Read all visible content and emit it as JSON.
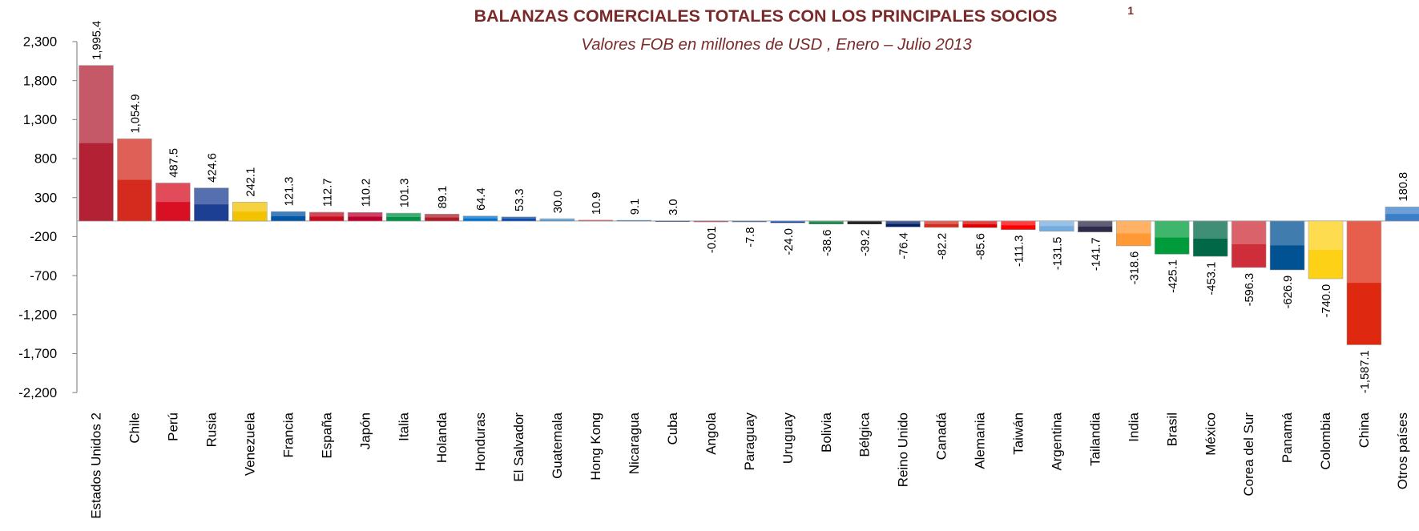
{
  "chart_data": {
    "type": "bar",
    "title": "BALANZAS COMERCIALES TOTALES CON LOS PRINCIPALES SOCIOS",
    "title_note": "1",
    "subtitle": "Valores FOB en millones de USD , Enero – Julio 2013",
    "categories": [
      "Estados Unidos 2",
      "Chile",
      "Perú",
      "Rusia",
      "Venezuela",
      "Francia",
      "España",
      "Japón",
      "Italia",
      "Holanda",
      "Honduras",
      "El Salvador",
      "Guatemala",
      "Hong Kong",
      "Nicaragua",
      "Cuba",
      "Angola",
      "Paraguay",
      "Uruguay",
      "Bolivia",
      "Bélgica",
      "Reino Unido",
      "Canadá",
      "Alemania",
      "Taiwán",
      "Argentina",
      "Tailandia",
      "India",
      "Brasil",
      "México",
      "Corea del Sur",
      "Panamá",
      "Colombia",
      "China",
      "Otros países"
    ],
    "values": [
      1995.4,
      1054.9,
      487.5,
      424.6,
      242.1,
      121.3,
      112.7,
      110.2,
      101.3,
      89.1,
      64.4,
      53.3,
      30.0,
      10.9,
      9.1,
      3.0,
      -0.01,
      -7.8,
      -24.0,
      -38.6,
      -39.2,
      -76.4,
      -82.2,
      -85.6,
      -111.3,
      -131.5,
      -141.7,
      -318.6,
      -425.1,
      -453.1,
      -596.3,
      -626.9,
      -740.0,
      -1587.1,
      180.8
    ],
    "value_labels": [
      "1,995.4",
      "1,054.9",
      "487.5",
      "424.6",
      "242.1",
      "121.3",
      "112.7",
      "110.2",
      "101.3",
      "89.1",
      "64.4",
      "53.3",
      "30.0",
      "10.9",
      "9.1",
      "3.0",
      "-0.01",
      "-7.8",
      "-24.0",
      "-38.6",
      "-39.2",
      "-76.4",
      "-82.2",
      "-85.6",
      "-111.3",
      "-131.5",
      "-141.7",
      "-318.6",
      "-425.1",
      "-453.1",
      "-596.3",
      "-626.9",
      "-740.0",
      "-1,587.1",
      "180.8"
    ],
    "colors": [
      "#b22234",
      "#d52b1e",
      "#d91023",
      "#1c3f94",
      "#f4c300",
      "#0055a4",
      "#c60b1e",
      "#bc002d",
      "#009246",
      "#ae1c28",
      "#0073cf",
      "#0047ab",
      "#4997d0",
      "#de2910",
      "#0067c6",
      "#002a8f",
      "#cc092f",
      "#0038a8",
      "#0038a8",
      "#007934",
      "#000000",
      "#012169",
      "#d52b1e",
      "#dd0000",
      "#fe0000",
      "#74acdf",
      "#2d2a4a",
      "#ff9933",
      "#009c3b",
      "#006847",
      "#cd2e3a",
      "#005293",
      "#fcd116",
      "#de2910",
      "#3a7fc8"
    ],
    "ylim": [
      -2200,
      2300
    ],
    "yticks": [
      {
        "value": 2300,
        "label": "2,300"
      },
      {
        "value": 1800,
        "label": "1,800"
      },
      {
        "value": 1300,
        "label": "1,300"
      },
      800,
      300,
      -200,
      -700,
      {
        "value": -1200,
        "label": "-1,200"
      },
      {
        "value": -1700,
        "label": "-1,700"
      },
      {
        "value": -2200,
        "label": "-2,200"
      }
    ],
    "grid": false
  }
}
